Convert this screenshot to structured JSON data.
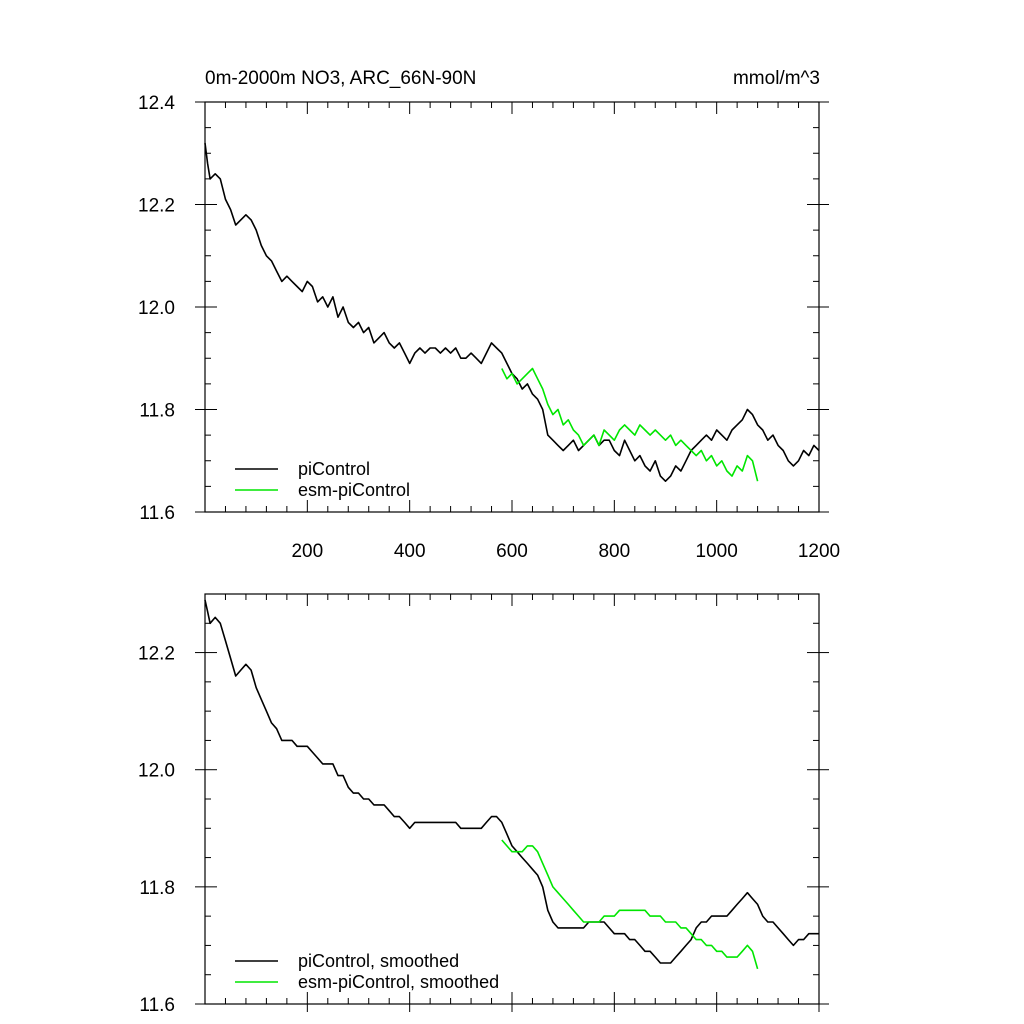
{
  "colors": {
    "piControl": "#000000",
    "esm_piControl": "#00e600",
    "axis": "#000000",
    "background": "#ffffff"
  },
  "chart_data": [
    {
      "type": "line",
      "title": "0m-2000m NO3, ARC_66N-90N",
      "units": "mmol/m^3",
      "xlim": [
        0,
        1200
      ],
      "ylim": [
        11.6,
        12.4
      ],
      "x_ticks": [
        "200",
        "400",
        "600",
        "800",
        "1000",
        "1200"
      ],
      "y_ticks": [
        "11.6",
        "11.8",
        "12.0",
        "12.2",
        "12.4"
      ],
      "legend_position": "bottom-left",
      "series": [
        {
          "name": "piControl",
          "color": "#000000",
          "x": [
            0,
            5,
            10,
            20,
            30,
            40,
            50,
            60,
            70,
            80,
            90,
            100,
            110,
            120,
            130,
            140,
            150,
            160,
            170,
            180,
            190,
            200,
            210,
            220,
            230,
            240,
            250,
            260,
            270,
            280,
            290,
            300,
            310,
            320,
            330,
            340,
            350,
            360,
            370,
            380,
            390,
            400,
            410,
            420,
            430,
            440,
            450,
            460,
            470,
            480,
            490,
            500,
            510,
            520,
            530,
            540,
            550,
            560,
            570,
            580,
            590,
            600,
            610,
            620,
            630,
            640,
            650,
            660,
            670,
            680,
            690,
            700,
            710,
            720,
            730,
            740,
            750,
            760,
            770,
            780,
            790,
            800,
            810,
            820,
            830,
            840,
            850,
            860,
            870,
            880,
            890,
            900,
            910,
            920,
            930,
            940,
            950,
            960,
            970,
            980,
            990,
            1000,
            1010,
            1020,
            1030,
            1040,
            1050,
            1060,
            1070,
            1080,
            1090,
            1100,
            1110,
            1120,
            1130,
            1140,
            1150,
            1160,
            1170,
            1180,
            1190,
            1200
          ],
          "values": [
            12.32,
            12.28,
            12.25,
            12.26,
            12.25,
            12.21,
            12.19,
            12.16,
            12.17,
            12.18,
            12.17,
            12.15,
            12.12,
            12.1,
            12.09,
            12.07,
            12.05,
            12.06,
            12.05,
            12.04,
            12.03,
            12.05,
            12.04,
            12.01,
            12.02,
            12.0,
            12.02,
            11.98,
            12.0,
            11.97,
            11.96,
            11.97,
            11.95,
            11.96,
            11.93,
            11.94,
            11.95,
            11.93,
            11.92,
            11.93,
            11.91,
            11.89,
            11.91,
            11.92,
            11.91,
            11.92,
            11.92,
            11.91,
            11.92,
            11.91,
            11.92,
            11.9,
            11.9,
            11.91,
            11.9,
            11.89,
            11.91,
            11.93,
            11.92,
            11.91,
            11.89,
            11.87,
            11.86,
            11.84,
            11.85,
            11.83,
            11.82,
            11.8,
            11.75,
            11.74,
            11.73,
            11.72,
            11.73,
            11.74,
            11.72,
            11.73,
            11.74,
            11.75,
            11.73,
            11.74,
            11.74,
            11.72,
            11.71,
            11.74,
            11.72,
            11.7,
            11.71,
            11.69,
            11.68,
            11.7,
            11.67,
            11.66,
            11.67,
            11.69,
            11.68,
            11.7,
            11.72,
            11.73,
            11.74,
            11.75,
            11.74,
            11.76,
            11.75,
            11.74,
            11.76,
            11.77,
            11.78,
            11.8,
            11.79,
            11.77,
            11.76,
            11.74,
            11.75,
            11.73,
            11.72,
            11.7,
            11.69,
            11.7,
            11.72,
            11.71,
            11.73,
            11.72
          ]
        },
        {
          "name": "esm-piControl",
          "color": "#00e600",
          "x": [
            580,
            590,
            600,
            610,
            620,
            630,
            640,
            650,
            660,
            670,
            680,
            690,
            700,
            710,
            720,
            730,
            740,
            750,
            760,
            770,
            780,
            790,
            800,
            810,
            820,
            830,
            840,
            850,
            860,
            870,
            880,
            890,
            900,
            910,
            920,
            930,
            940,
            950,
            960,
            970,
            980,
            990,
            1000,
            1010,
            1020,
            1030,
            1040,
            1050,
            1060,
            1070,
            1080
          ],
          "values": [
            11.88,
            11.86,
            11.87,
            11.85,
            11.86,
            11.87,
            11.88,
            11.86,
            11.84,
            11.81,
            11.79,
            11.8,
            11.77,
            11.78,
            11.76,
            11.75,
            11.73,
            11.74,
            11.75,
            11.73,
            11.76,
            11.75,
            11.74,
            11.76,
            11.77,
            11.76,
            11.75,
            11.77,
            11.76,
            11.75,
            11.76,
            11.75,
            11.74,
            11.75,
            11.73,
            11.74,
            11.73,
            11.72,
            11.71,
            11.72,
            11.7,
            11.71,
            11.69,
            11.7,
            11.68,
            11.67,
            11.69,
            11.68,
            11.71,
            11.7,
            11.66
          ]
        }
      ]
    },
    {
      "type": "line",
      "xlim": [
        0,
        1200
      ],
      "ylim": [
        11.6,
        12.3
      ],
      "x_ticks": [],
      "y_ticks": [
        "11.6",
        "11.8",
        "12.0",
        "12.2"
      ],
      "legend_position": "bottom-left",
      "series": [
        {
          "name": "piControl, smoothed",
          "color": "#000000",
          "x": [
            0,
            5,
            10,
            20,
            30,
            40,
            50,
            60,
            70,
            80,
            90,
            100,
            110,
            120,
            130,
            140,
            150,
            160,
            170,
            180,
            190,
            200,
            210,
            220,
            230,
            240,
            250,
            260,
            270,
            280,
            290,
            300,
            310,
            320,
            330,
            340,
            350,
            360,
            370,
            380,
            390,
            400,
            410,
            420,
            430,
            440,
            450,
            460,
            470,
            480,
            490,
            500,
            510,
            520,
            530,
            540,
            550,
            560,
            570,
            580,
            590,
            600,
            610,
            620,
            630,
            640,
            650,
            660,
            670,
            680,
            690,
            700,
            710,
            720,
            730,
            740,
            750,
            760,
            770,
            780,
            790,
            800,
            810,
            820,
            830,
            840,
            850,
            860,
            870,
            880,
            890,
            900,
            910,
            920,
            930,
            940,
            950,
            960,
            970,
            980,
            990,
            1000,
            1010,
            1020,
            1030,
            1040,
            1050,
            1060,
            1070,
            1080,
            1090,
            1100,
            1110,
            1120,
            1130,
            1140,
            1150,
            1160,
            1170,
            1180,
            1190,
            1200
          ],
          "values": [
            12.29,
            12.27,
            12.25,
            12.26,
            12.25,
            12.22,
            12.19,
            12.16,
            12.17,
            12.18,
            12.17,
            12.14,
            12.12,
            12.1,
            12.08,
            12.07,
            12.05,
            12.05,
            12.05,
            12.04,
            12.04,
            12.04,
            12.03,
            12.02,
            12.01,
            12.01,
            12.01,
            11.99,
            11.99,
            11.97,
            11.96,
            11.96,
            11.95,
            11.95,
            11.94,
            11.94,
            11.94,
            11.93,
            11.92,
            11.92,
            11.91,
            11.9,
            11.91,
            11.91,
            11.91,
            11.91,
            11.91,
            11.91,
            11.91,
            11.91,
            11.91,
            11.9,
            11.9,
            11.9,
            11.9,
            11.9,
            11.91,
            11.92,
            11.92,
            11.91,
            11.89,
            11.87,
            11.86,
            11.85,
            11.84,
            11.83,
            11.82,
            11.8,
            11.76,
            11.74,
            11.73,
            11.73,
            11.73,
            11.73,
            11.73,
            11.73,
            11.74,
            11.74,
            11.74,
            11.74,
            11.73,
            11.72,
            11.72,
            11.72,
            11.71,
            11.71,
            11.7,
            11.69,
            11.69,
            11.68,
            11.67,
            11.67,
            11.67,
            11.68,
            11.69,
            11.7,
            11.71,
            11.73,
            11.74,
            11.74,
            11.75,
            11.75,
            11.75,
            11.75,
            11.76,
            11.77,
            11.78,
            11.79,
            11.78,
            11.77,
            11.75,
            11.74,
            11.74,
            11.73,
            11.72,
            11.71,
            11.7,
            11.71,
            11.71,
            11.72,
            11.72,
            11.72
          ]
        },
        {
          "name": "esm-piControl, smoothed",
          "color": "#00e600",
          "x": [
            580,
            590,
            600,
            610,
            620,
            630,
            640,
            650,
            660,
            670,
            680,
            690,
            700,
            710,
            720,
            730,
            740,
            750,
            760,
            770,
            780,
            790,
            800,
            810,
            820,
            830,
            840,
            850,
            860,
            870,
            880,
            890,
            900,
            910,
            920,
            930,
            940,
            950,
            960,
            970,
            980,
            990,
            1000,
            1010,
            1020,
            1030,
            1040,
            1050,
            1060,
            1070,
            1080
          ],
          "values": [
            11.88,
            11.87,
            11.86,
            11.86,
            11.86,
            11.87,
            11.87,
            11.86,
            11.84,
            11.82,
            11.8,
            11.79,
            11.78,
            11.77,
            11.76,
            11.75,
            11.74,
            11.74,
            11.74,
            11.74,
            11.75,
            11.75,
            11.75,
            11.76,
            11.76,
            11.76,
            11.76,
            11.76,
            11.76,
            11.75,
            11.75,
            11.75,
            11.74,
            11.74,
            11.74,
            11.73,
            11.73,
            11.72,
            11.71,
            11.71,
            11.7,
            11.7,
            11.69,
            11.69,
            11.68,
            11.68,
            11.68,
            11.69,
            11.7,
            11.69,
            11.66
          ]
        }
      ]
    }
  ]
}
